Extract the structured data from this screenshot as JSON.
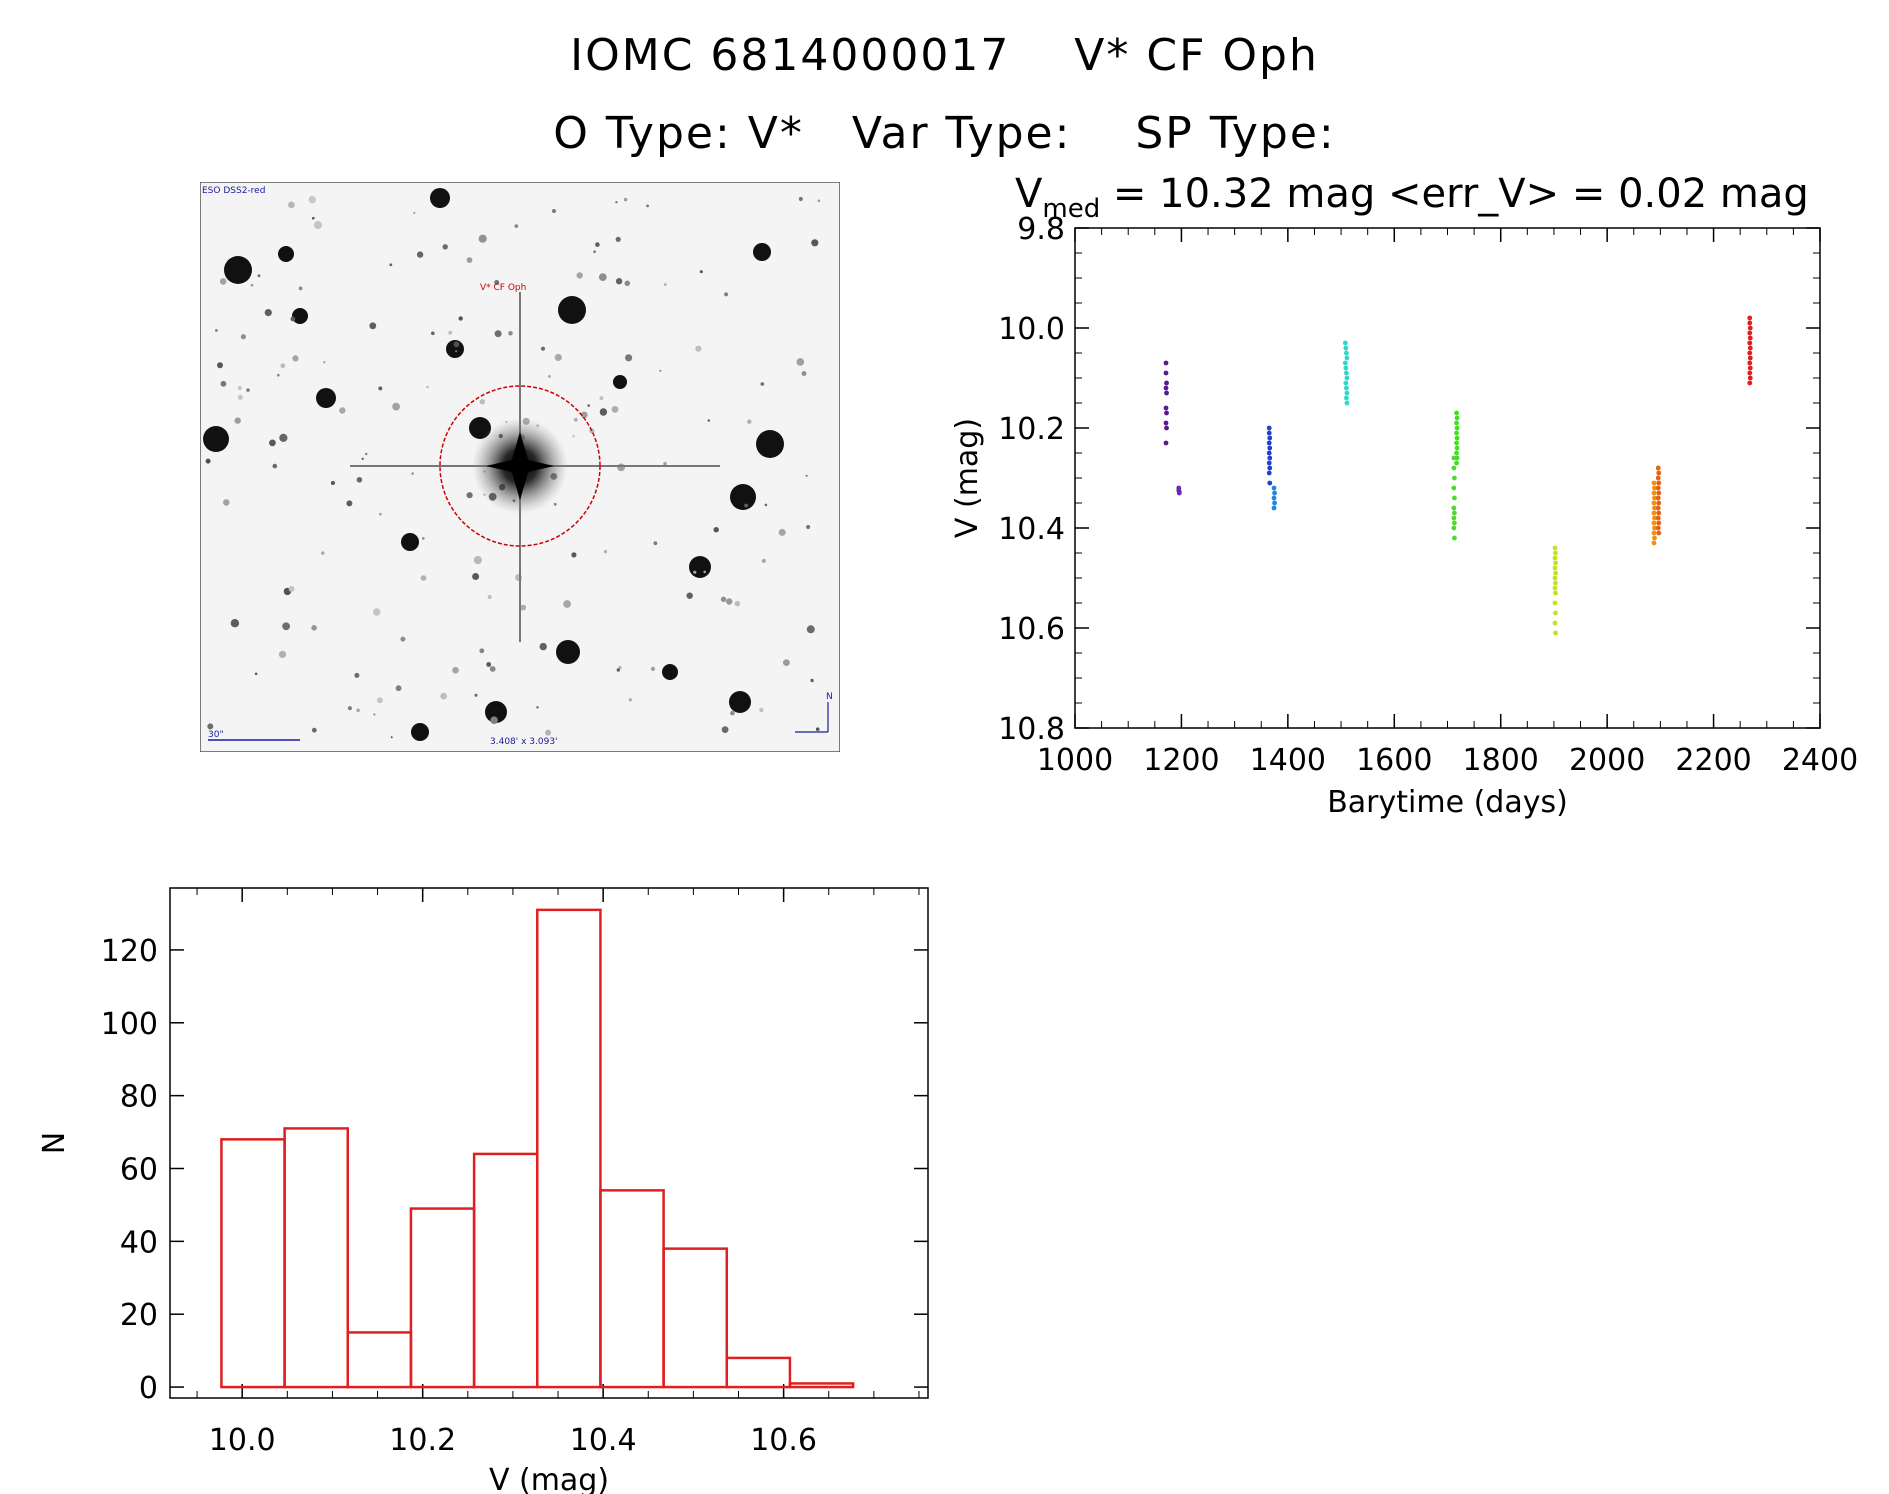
{
  "header": {
    "line1": "IOMC 6814000017    V* CF Oph",
    "line2": "O Type: V*   Var Type:    SP Type:"
  },
  "sky_image": {
    "survey_label": "ESO DSS2-red",
    "object_label": "V* CF Oph",
    "scale_label": "30\"",
    "fov_label": "3.408' x 3.093'",
    "north_label": "N",
    "colors": {
      "circle": "#cc0000",
      "labels": "#1a1a9c"
    }
  },
  "chart_data": [
    {
      "type": "scatter",
      "title_main": "V",
      "title_sub": "med",
      "title_rest": " = 10.32 mag <err_V> = 0.02 mag",
      "xlabel": "Barytime (days)",
      "ylabel": "V (mag)",
      "xlim": [
        1000,
        2400
      ],
      "ylim": [
        10.8,
        9.8
      ],
      "y_inverted": true,
      "xticks": [
        "1000",
        "1200",
        "1400",
        "1600",
        "1800",
        "2000",
        "2200",
        "2400"
      ],
      "yticks": [
        "9.8",
        "10.0",
        "10.2",
        "10.4",
        "10.6",
        "10.8"
      ],
      "series": [
        {
          "color": "#5a1a8c",
          "points": [
            [
              1171,
              10.07
            ],
            [
              1171,
              10.09
            ],
            [
              1172,
              10.11
            ],
            [
              1171,
              10.12
            ],
            [
              1172,
              10.13
            ],
            [
              1171,
              10.16
            ],
            [
              1172,
              10.17
            ],
            [
              1171,
              10.19
            ],
            [
              1172,
              10.2
            ],
            [
              1171,
              10.23
            ]
          ]
        },
        {
          "color": "#6a2ab0",
          "points": [
            [
              1195,
              10.32
            ],
            [
              1196,
              10.33
            ],
            [
              1195,
              10.325
            ],
            [
              1196,
              10.328
            ]
          ]
        },
        {
          "color": "#2040d0",
          "points": [
            [
              1365,
              10.2
            ],
            [
              1365,
              10.21
            ],
            [
              1366,
              10.22
            ],
            [
              1365,
              10.23
            ],
            [
              1366,
              10.24
            ],
            [
              1365,
              10.25
            ],
            [
              1366,
              10.26
            ],
            [
              1365,
              10.27
            ],
            [
              1366,
              10.28
            ],
            [
              1365,
              10.29
            ],
            [
              1366,
              10.31
            ]
          ]
        },
        {
          "color": "#1e88e0",
          "points": [
            [
              1374,
              10.32
            ],
            [
              1375,
              10.33
            ],
            [
              1374,
              10.34
            ],
            [
              1375,
              10.35
            ],
            [
              1374,
              10.36
            ]
          ]
        },
        {
          "color": "#30d8c8",
          "points": [
            [
              1508,
              10.03
            ],
            [
              1509,
              10.04
            ],
            [
              1510,
              10.05
            ],
            [
              1511,
              10.06
            ],
            [
              1508,
              10.07
            ],
            [
              1509,
              10.08
            ],
            [
              1510,
              10.09
            ],
            [
              1511,
              10.1
            ],
            [
              1509,
              10.11
            ],
            [
              1510,
              10.12
            ],
            [
              1511,
              10.13
            ],
            [
              1510,
              10.14
            ],
            [
              1511,
              10.15
            ]
          ]
        },
        {
          "color": "#50d830",
          "points": [
            [
              1712,
              10.26
            ],
            [
              1712,
              10.28
            ],
            [
              1713,
              10.3
            ],
            [
              1712,
              10.32
            ],
            [
              1713,
              10.34
            ],
            [
              1712,
              10.36
            ],
            [
              1713,
              10.37
            ],
            [
              1712,
              10.38
            ],
            [
              1713,
              10.39
            ],
            [
              1712,
              10.4
            ],
            [
              1713,
              10.42
            ]
          ]
        },
        {
          "color": "#40e020",
          "points": [
            [
              1717,
              10.17
            ],
            [
              1718,
              10.18
            ],
            [
              1717,
              10.19
            ],
            [
              1718,
              10.2
            ],
            [
              1717,
              10.21
            ],
            [
              1718,
              10.22
            ],
            [
              1717,
              10.23
            ],
            [
              1718,
              10.24
            ],
            [
              1717,
              10.25
            ],
            [
              1718,
              10.26
            ],
            [
              1717,
              10.27
            ]
          ]
        },
        {
          "color": "#c8e020",
          "points": [
            [
              1902,
              10.44
            ],
            [
              1903,
              10.45
            ],
            [
              1902,
              10.46
            ],
            [
              1903,
              10.47
            ],
            [
              1902,
              10.48
            ],
            [
              1903,
              10.49
            ],
            [
              1902,
              10.5
            ],
            [
              1903,
              10.51
            ],
            [
              1902,
              10.52
            ],
            [
              1903,
              10.53
            ],
            [
              1902,
              10.55
            ],
            [
              1903,
              10.57
            ],
            [
              1902,
              10.59
            ],
            [
              1903,
              10.61
            ]
          ]
        },
        {
          "color": "#f09010",
          "points": [
            [
              2088,
              10.31
            ],
            [
              2089,
              10.32
            ],
            [
              2088,
              10.33
            ],
            [
              2089,
              10.34
            ],
            [
              2088,
              10.35
            ],
            [
              2089,
              10.36
            ],
            [
              2088,
              10.37
            ],
            [
              2089,
              10.38
            ],
            [
              2088,
              10.39
            ],
            [
              2089,
              10.4
            ],
            [
              2088,
              10.41
            ],
            [
              2089,
              10.42
            ],
            [
              2088,
              10.43
            ]
          ]
        },
        {
          "color": "#e86010",
          "points": [
            [
              2096,
              10.28
            ],
            [
              2097,
              10.29
            ],
            [
              2096,
              10.3
            ],
            [
              2097,
              10.31
            ],
            [
              2096,
              10.32
            ],
            [
              2097,
              10.33
            ],
            [
              2096,
              10.34
            ],
            [
              2097,
              10.35
            ],
            [
              2096,
              10.36
            ],
            [
              2097,
              10.37
            ],
            [
              2096,
              10.38
            ],
            [
              2097,
              10.39
            ],
            [
              2096,
              10.4
            ],
            [
              2097,
              10.41
            ]
          ]
        },
        {
          "color": "#e02020",
          "points": [
            [
              2268,
              9.98
            ],
            [
              2268,
              9.99
            ],
            [
              2269,
              10.0
            ],
            [
              2268,
              10.01
            ],
            [
              2269,
              10.02
            ],
            [
              2268,
              10.03
            ],
            [
              2269,
              10.04
            ],
            [
              2268,
              10.05
            ],
            [
              2269,
              10.06
            ],
            [
              2268,
              10.07
            ],
            [
              2269,
              10.08
            ],
            [
              2268,
              10.09
            ],
            [
              2269,
              10.1
            ],
            [
              2268,
              10.11
            ]
          ]
        }
      ]
    },
    {
      "type": "bar",
      "histogram": true,
      "xlabel": "V (mag)",
      "ylabel": "N",
      "xlim": [
        9.92,
        10.76
      ],
      "ylim": [
        -3,
        137
      ],
      "xticks": [
        "10.0",
        "10.2",
        "10.4",
        "10.6"
      ],
      "yticks": [
        "0",
        "20",
        "40",
        "60",
        "80",
        "100",
        "120"
      ],
      "bins": [
        {
          "x0": 9.977,
          "x1": 10.047,
          "count": 68
        },
        {
          "x0": 10.047,
          "x1": 10.117,
          "count": 71
        },
        {
          "x0": 10.117,
          "x1": 10.187,
          "count": 15
        },
        {
          "x0": 10.187,
          "x1": 10.257,
          "count": 49
        },
        {
          "x0": 10.257,
          "x1": 10.327,
          "count": 64
        },
        {
          "x0": 10.327,
          "x1": 10.397,
          "count": 131
        },
        {
          "x0": 10.397,
          "x1": 10.467,
          "count": 54
        },
        {
          "x0": 10.467,
          "x1": 10.537,
          "count": 38
        },
        {
          "x0": 10.537,
          "x1": 10.607,
          "count": 8
        },
        {
          "x0": 10.607,
          "x1": 10.677,
          "count": 1
        }
      ],
      "bar_color": "#e02020"
    }
  ]
}
